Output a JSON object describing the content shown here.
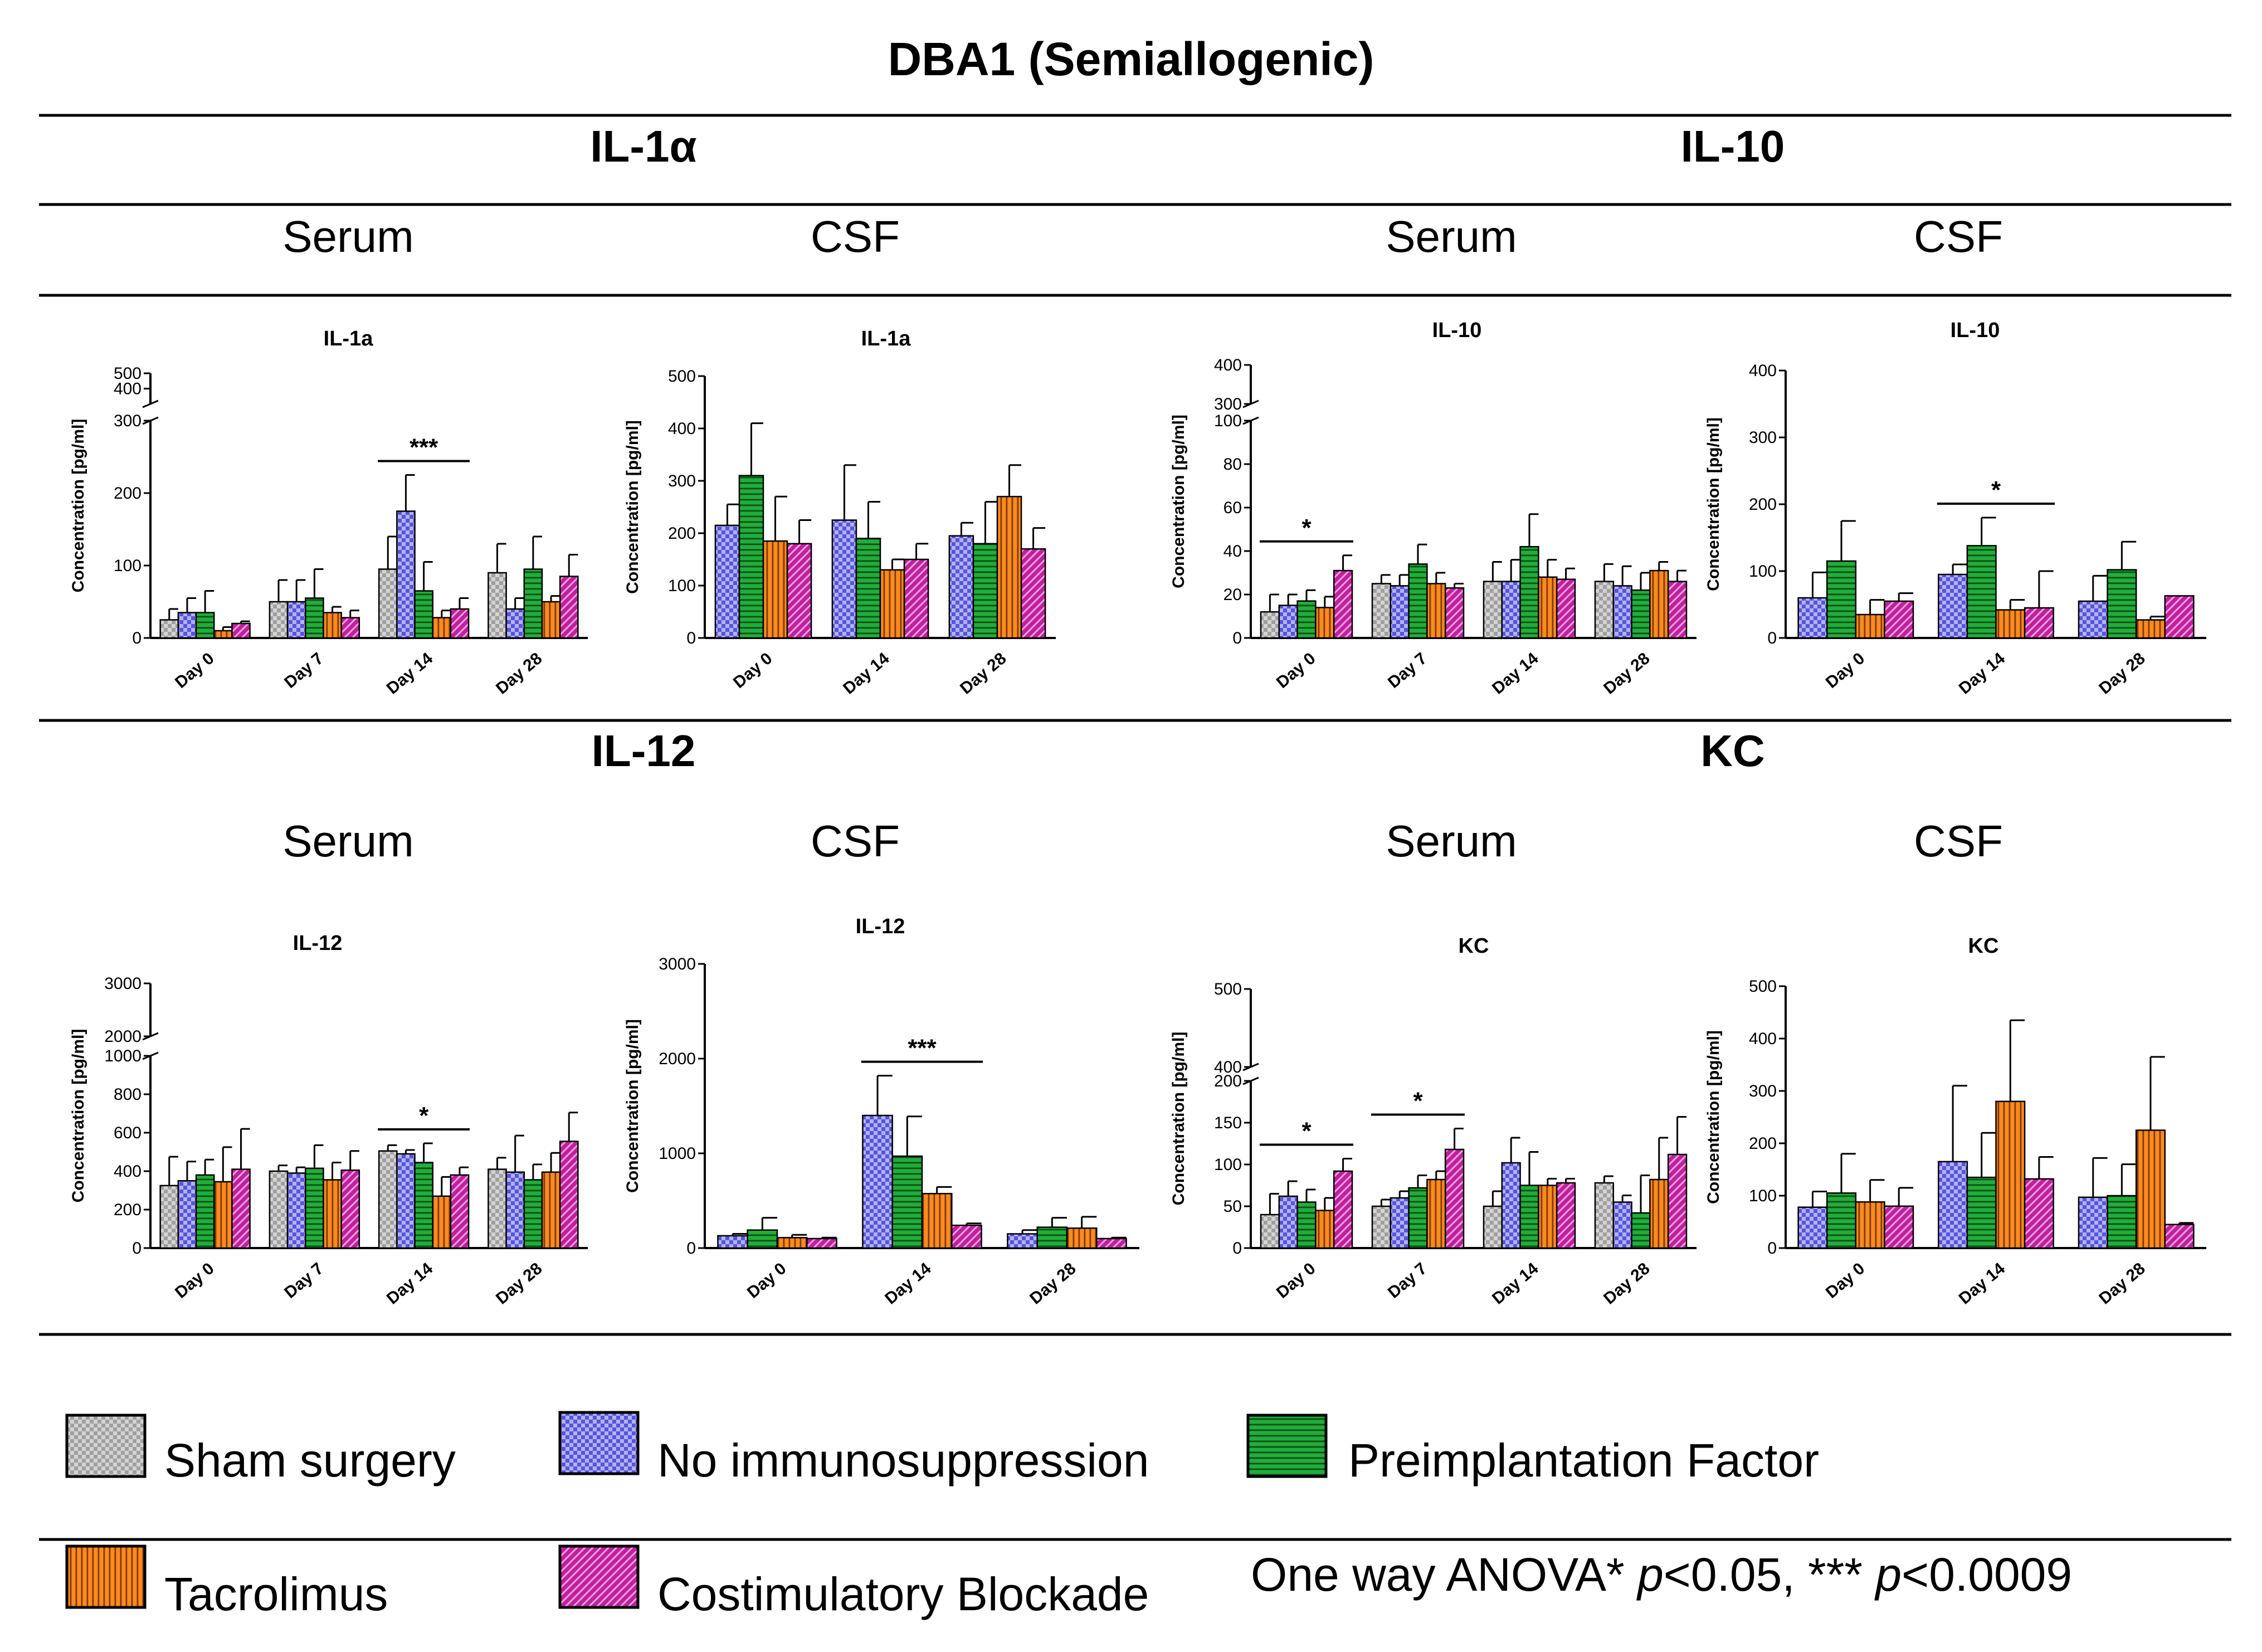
{
  "figure_title": "DBA1 (Semiallogenic)",
  "row_headers": [
    {
      "left": "IL-1α",
      "right": "IL-10"
    },
    {
      "left": "IL-12",
      "right": "KC"
    }
  ],
  "column_labels": [
    "Serum",
    "CSF",
    "Serum",
    "CSF"
  ],
  "colors": {
    "sham": "#a0a0a0",
    "no_immuno": "#5555dd",
    "pif": "#1fae3a",
    "tacrolimus": "#ff8a1e",
    "costim": "#c21fa0"
  },
  "legend": {
    "items": [
      {
        "key": "sham",
        "label": "Sham surgery",
        "pattern": "check"
      },
      {
        "key": "no_immuno",
        "label": "No immunosuppression",
        "pattern": "check"
      },
      {
        "key": "pif",
        "label": "Preimplantation Factor",
        "pattern": "hlines"
      },
      {
        "key": "tacrolimus",
        "label": "Tacrolimus",
        "pattern": "vlines"
      },
      {
        "key": "costim",
        "label": "Costimulatory Blockade",
        "pattern": "diag"
      }
    ],
    "stat_prefix": "One way ANOVA* ",
    "stat_p1": "p",
    "stat_mid": "<0.05, *** ",
    "stat_p2": "p",
    "stat_suffix": "<0.0009"
  },
  "chart_data": [
    {
      "type": "bar",
      "title": "IL-1a",
      "ylabel": "Concentration [pg/ml]",
      "categories": [
        "Day 0",
        "Day 7",
        "Day 14",
        "Day 28"
      ],
      "series_keys": [
        "sham",
        "no_immuno",
        "pif",
        "tacrolimus",
        "costim"
      ],
      "values": [
        [
          25,
          35,
          35,
          10,
          20
        ],
        [
          50,
          50,
          55,
          35,
          28
        ],
        [
          95,
          175,
          65,
          28,
          40
        ],
        [
          90,
          40,
          95,
          50,
          85
        ]
      ],
      "errors": [
        [
          15,
          20,
          30,
          5,
          3
        ],
        [
          30,
          30,
          40,
          8,
          10
        ],
        [
          45,
          50,
          40,
          10,
          15
        ],
        [
          40,
          15,
          45,
          8,
          30
        ]
      ],
      "axis": {
        "type": "broken",
        "lower": [
          0,
          300
        ],
        "upper": [
          300,
          500
        ],
        "lower_ticks": [
          0,
          100,
          200,
          300
        ],
        "upper_ticks": [
          400,
          500
        ]
      },
      "significance": [
        {
          "label": "***",
          "category_index": 2
        }
      ]
    },
    {
      "type": "bar",
      "title": "IL-1a",
      "ylabel": "Concentration [pg/ml]",
      "categories": [
        "Day 0",
        "Day 14",
        "Day 28"
      ],
      "series_keys": [
        "no_immuno",
        "pif",
        "tacrolimus",
        "costim"
      ],
      "values": [
        [
          215,
          310,
          185,
          180
        ],
        [
          225,
          190,
          130,
          150
        ],
        [
          195,
          180,
          270,
          170
        ]
      ],
      "errors": [
        [
          40,
          100,
          85,
          45
        ],
        [
          105,
          70,
          20,
          30
        ],
        [
          25,
          80,
          60,
          40
        ]
      ],
      "axis": {
        "type": "linear",
        "range": [
          0,
          500
        ],
        "ticks": [
          0,
          100,
          200,
          300,
          400,
          500
        ]
      },
      "significance": []
    },
    {
      "type": "bar",
      "title": "IL-10",
      "ylabel": "Concentration [pg/ml]",
      "categories": [
        "Day 0",
        "Day 7",
        "Day 14",
        "Day 28"
      ],
      "series_keys": [
        "sham",
        "no_immuno",
        "pif",
        "tacrolimus",
        "costim"
      ],
      "values": [
        [
          12,
          15,
          17,
          14,
          31
        ],
        [
          25,
          24,
          34,
          25,
          23
        ],
        [
          26,
          26,
          42,
          28,
          27
        ],
        [
          26,
          24,
          22,
          31,
          26
        ]
      ],
      "errors": [
        [
          8,
          5,
          5,
          5,
          7
        ],
        [
          4,
          5,
          9,
          5,
          2
        ],
        [
          9,
          10,
          15,
          8,
          5
        ],
        [
          8,
          9,
          8,
          4,
          5
        ]
      ],
      "axis": {
        "type": "broken",
        "lower": [
          0,
          100
        ],
        "upper": [
          300,
          400
        ],
        "lower_ticks": [
          0,
          20,
          40,
          60,
          80,
          100
        ],
        "upper_ticks": [
          300,
          400
        ]
      },
      "significance": [
        {
          "label": "*",
          "category_index": 0
        }
      ]
    },
    {
      "type": "bar",
      "title": "IL-10",
      "ylabel": "Concentration [pg/ml]",
      "categories": [
        "Day 0",
        "Day 14",
        "Day 28"
      ],
      "series_keys": [
        "no_immuno",
        "pif",
        "tacrolimus",
        "costim"
      ],
      "values": [
        [
          60,
          115,
          35,
          55
        ],
        [
          95,
          138,
          42,
          45
        ],
        [
          55,
          102,
          27,
          63
        ]
      ],
      "errors": [
        [
          38,
          60,
          22,
          12
        ],
        [
          15,
          42,
          15,
          55
        ],
        [
          38,
          42,
          5,
          0
        ]
      ],
      "axis": {
        "type": "linear",
        "range": [
          0,
          400
        ],
        "ticks": [
          0,
          100,
          200,
          300,
          400
        ]
      },
      "significance": [
        {
          "label": "*",
          "category_index": 1
        }
      ]
    },
    {
      "type": "bar",
      "title": "IL-12",
      "ylabel": "Concentration [pg/ml]",
      "categories": [
        "Day 0",
        "Day 7",
        "Day 14",
        "Day 28"
      ],
      "series_keys": [
        "sham",
        "no_immuno",
        "pif",
        "tacrolimus",
        "costim"
      ],
      "values": [
        [
          325,
          350,
          380,
          345,
          410
        ],
        [
          400,
          390,
          415,
          355,
          405
        ],
        [
          505,
          490,
          445,
          270,
          380
        ],
        [
          410,
          395,
          355,
          395,
          555
        ]
      ],
      "errors": [
        [
          150,
          100,
          80,
          180,
          210
        ],
        [
          30,
          30,
          120,
          90,
          100
        ],
        [
          30,
          20,
          100,
          100,
          40
        ],
        [
          60,
          190,
          80,
          100,
          150
        ]
      ],
      "axis": {
        "type": "broken",
        "lower": [
          0,
          1000
        ],
        "upper": [
          2000,
          3000
        ],
        "lower_ticks": [
          0,
          200,
          400,
          600,
          800,
          1000
        ],
        "upper_ticks": [
          2000,
          3000
        ]
      },
      "significance": [
        {
          "label": "*",
          "category_index": 2
        }
      ]
    },
    {
      "type": "bar",
      "title": "IL-12",
      "ylabel": "Concentration [pg/ml]",
      "categories": [
        "Day 0",
        "Day 14",
        "Day 28"
      ],
      "series_keys": [
        "no_immuno",
        "pif",
        "tacrolimus",
        "costim"
      ],
      "values": [
        [
          130,
          190,
          110,
          100
        ],
        [
          1400,
          970,
          575,
          240
        ],
        [
          150,
          220,
          210,
          100
        ]
      ],
      "errors": [
        [
          20,
          130,
          30,
          10
        ],
        [
          420,
          420,
          70,
          20
        ],
        [
          40,
          100,
          120,
          10
        ]
      ],
      "axis": {
        "type": "linear",
        "range": [
          0,
          3000
        ],
        "ticks": [
          0,
          1000,
          2000,
          3000
        ]
      },
      "significance": [
        {
          "label": "***",
          "category_index": 1
        }
      ]
    },
    {
      "type": "bar",
      "title": "KC",
      "ylabel": "Concentration [pg/ml]",
      "categories": [
        "Day 0",
        "Day 7",
        "Day 14",
        "Day 28"
      ],
      "series_keys": [
        "sham",
        "no_immuno",
        "pif",
        "tacrolimus",
        "costim"
      ],
      "values": [
        [
          40,
          62,
          55,
          45,
          92
        ],
        [
          50,
          60,
          72,
          82,
          118
        ],
        [
          50,
          102,
          75,
          75,
          78
        ],
        [
          78,
          55,
          42,
          82,
          112
        ]
      ],
      "errors": [
        [
          25,
          18,
          15,
          15,
          15
        ],
        [
          8,
          8,
          15,
          10,
          25
        ],
        [
          18,
          30,
          40,
          8,
          5
        ],
        [
          8,
          8,
          45,
          50,
          45
        ]
      ],
      "axis": {
        "type": "broken",
        "lower": [
          0,
          200
        ],
        "upper": [
          400,
          500
        ],
        "lower_ticks": [
          0,
          50,
          100,
          150,
          200
        ],
        "upper_ticks": [
          400,
          500
        ]
      },
      "significance": [
        {
          "label": "*",
          "category_index": 0
        },
        {
          "label": "*",
          "category_index": 1
        }
      ]
    },
    {
      "type": "bar",
      "title": "KC",
      "ylabel": "Concentration [pg/ml]",
      "categories": [
        "Day 0",
        "Day 14",
        "Day 28"
      ],
      "series_keys": [
        "no_immuno",
        "pif",
        "tacrolimus",
        "costim"
      ],
      "values": [
        [
          78,
          105,
          88,
          80
        ],
        [
          165,
          135,
          280,
          132
        ],
        [
          97,
          100,
          225,
          45
        ]
      ],
      "errors": [
        [
          30,
          75,
          42,
          35
        ],
        [
          145,
          85,
          155,
          42
        ],
        [
          75,
          60,
          140,
          3
        ]
      ],
      "axis": {
        "type": "linear",
        "range": [
          0,
          500
        ],
        "ticks": [
          0,
          100,
          200,
          300,
          400,
          500
        ]
      },
      "significance": []
    }
  ]
}
